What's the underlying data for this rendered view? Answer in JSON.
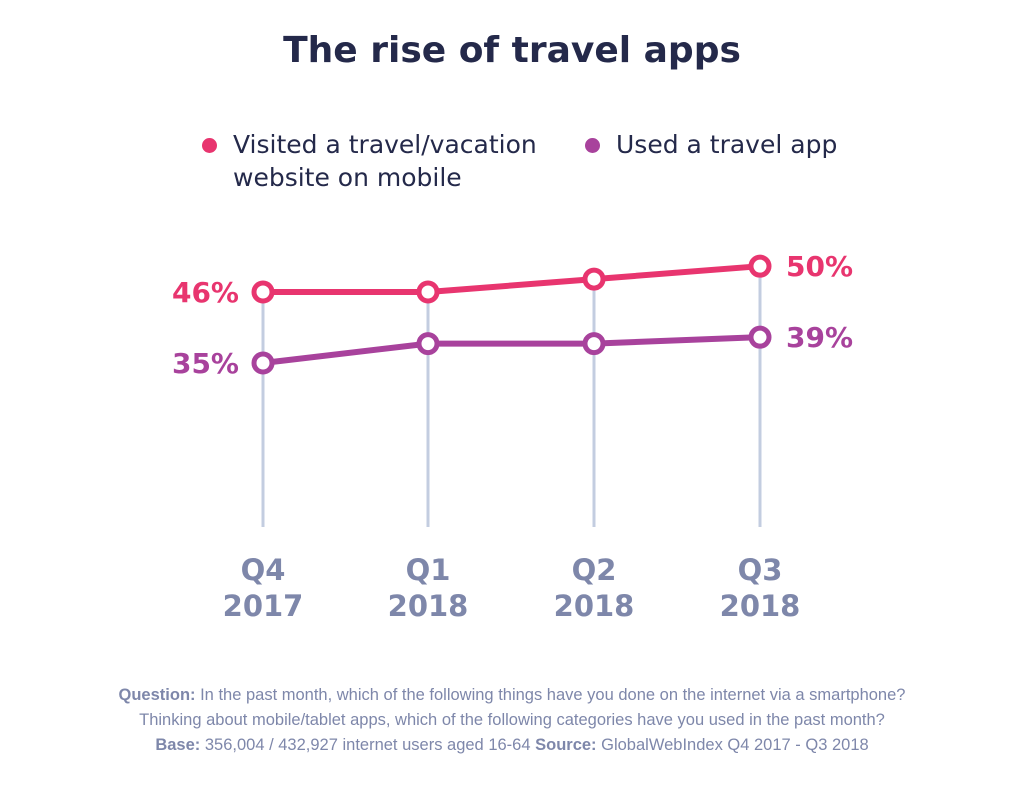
{
  "title": "The rise of travel apps",
  "legend": [
    {
      "label": "Visited a travel/vacation\nwebsite on mobile",
      "color": "#e8356f"
    },
    {
      "label": "Used a travel app",
      "color": "#a8429c"
    }
  ],
  "colors": {
    "axis_line": "#c3cde0",
    "tick_label": "#7e87aa",
    "title": "#24294a",
    "footer": "#7e87aa"
  },
  "chart_data": {
    "type": "line",
    "title": "The rise of travel apps",
    "categories": [
      "Q4 2017",
      "Q1 2018",
      "Q2 2018",
      "Q3 2018"
    ],
    "x_tick_labels": [
      [
        "Q4",
        "2017"
      ],
      [
        "Q1",
        "2018"
      ],
      [
        "Q2",
        "2018"
      ],
      [
        "Q3",
        "2018"
      ]
    ],
    "series": [
      {
        "name": "Visited a travel/vacation website on mobile",
        "values": [
          46,
          46,
          48,
          50
        ],
        "color": "#e8356f",
        "data_labels": {
          "first": "46%",
          "last": "50%"
        }
      },
      {
        "name": "Used a travel app",
        "values": [
          35,
          38,
          38,
          39
        ],
        "color": "#a8429c",
        "data_labels": {
          "first": "35%",
          "last": "39%"
        }
      }
    ],
    "xlabel": "",
    "ylabel": "",
    "grid": "vertical drop lines at each category",
    "legend_position": "top"
  },
  "footer": {
    "question_label": "Question:",
    "question_text": " In the past month, which of the following things have you done on the internet via a smartphone?",
    "question_text_2": "Thinking about mobile/tablet apps, which of the following categories have you used in the past month?",
    "base_label": "Base:",
    "base_text": " 356,004 / 432,927 internet users aged 16-64 ",
    "source_label": "Source:",
    "source_text": " GlobalWebIndex Q4 2017 - Q3 2018"
  }
}
